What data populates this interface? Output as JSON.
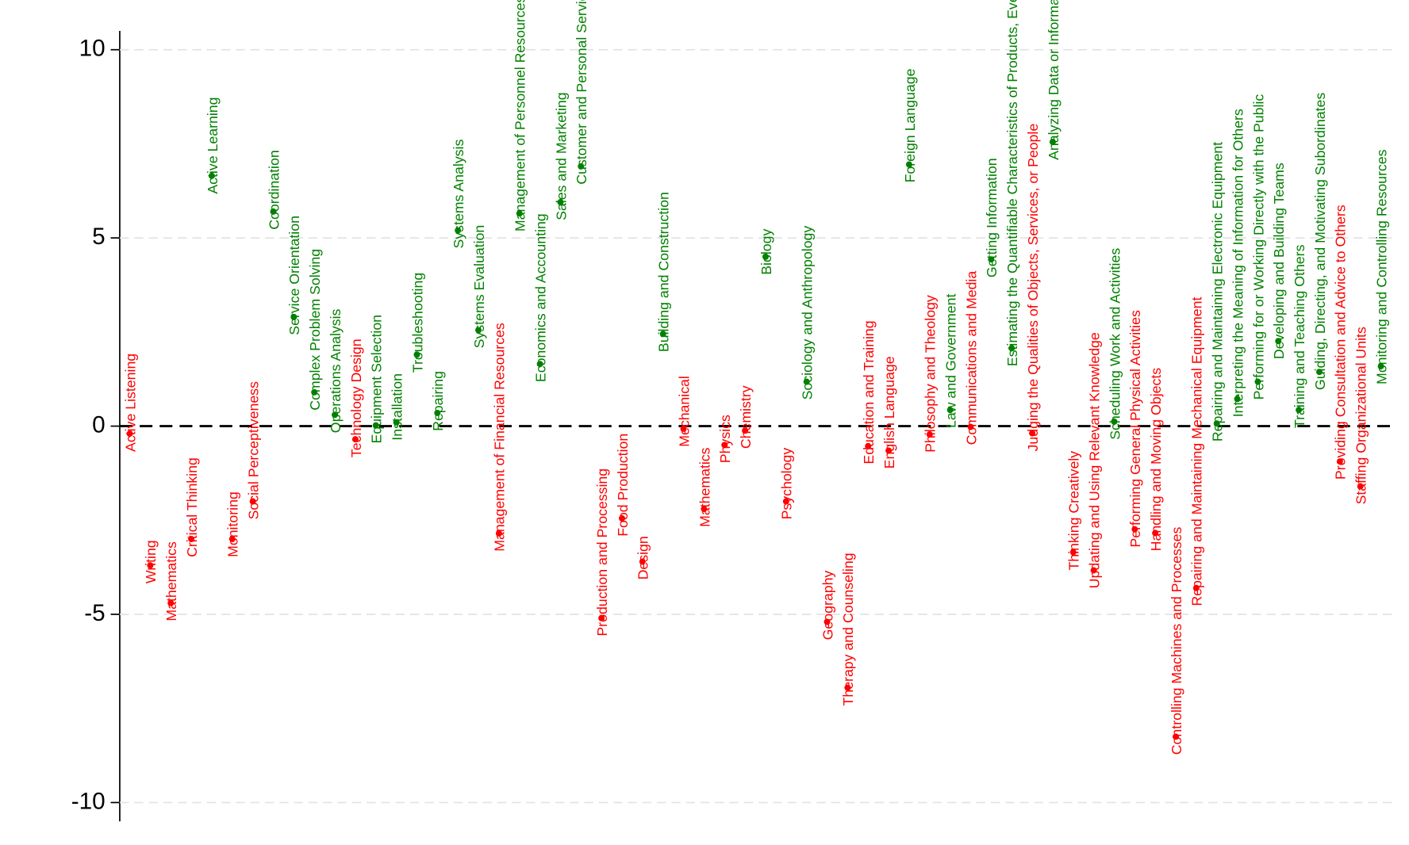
{
  "chart_data": {
    "type": "scatter",
    "categories": [
      "Active Listening",
      "Writing",
      "Mathematics",
      "Critical Thinking",
      "Active Learning",
      "Monitoring",
      "Social Perceptiveness",
      "Coordination",
      "Service Orientation",
      "Complex Problem Solving",
      "Operations Analysis",
      "Technology Design",
      "Equipment Selection",
      "Installation",
      "Troubleshooting",
      "Repairing",
      "Systems Analysis",
      "Systems Evaluation",
      "Management of Financial Resources",
      "Management of Personnel Resources",
      "Economics and Accounting",
      "Sales and Marketing",
      "Customer and Personal Service",
      "Production and Processing",
      "Food Production",
      "Design",
      "Building and Construction",
      "Mechanical",
      "Mathematics",
      "Physics",
      "Chemistry",
      "Biology",
      "Psychology",
      "Sociology and Anthropology",
      "Geography",
      "Therapy and Counseling",
      "Education and Training",
      "English Language",
      "Foreign Language",
      "Philosophy and Theology",
      "Law and Government",
      "Communications and Media",
      "Getting Information",
      "Estimating the Quantifiable Characteristics of Products, Events, or Information",
      "Judging the Qualities of Objects, Services, or People",
      "Analyzing Data or Information",
      "Thinking Creatively",
      "Updating and Using Relevant Knowledge",
      "Scheduling Work and Activities",
      "Performing General Physical Activities",
      "Handling and Moving Objects",
      "Controlling Machines and Processes",
      "Repairing and Maintaining Mechanical Equipment",
      "Repairing and Maintaining Electronic Equipment",
      "Interpreting the Meaning of Information for Others",
      "Performing for or Working Directly with the Public",
      "Developing and Building Teams",
      "Training and Teaching Others",
      "Guiding, Directing, and Motivating Subordinates",
      "Providing Consultation and Advice to Others",
      "Staffing Organizational Units",
      "Monitoring and Controlling Resources"
    ],
    "values": [
      -0.2,
      -3.7,
      -4.7,
      -3.0,
      6.65,
      -3.0,
      -2.0,
      5.7,
      2.9,
      0.9,
      0.3,
      -0.35,
      0.02,
      0.1,
      1.9,
      0.35,
      5.2,
      2.55,
      -2.85,
      5.65,
      1.65,
      5.95,
      6.9,
      -5.1,
      -2.45,
      -3.6,
      2.45,
      -0.07,
      -2.2,
      -0.5,
      -0.12,
      4.5,
      -2.0,
      1.18,
      -5.2,
      -6.95,
      -0.53,
      -0.65,
      6.95,
      -0.22,
      0.43,
      -0.02,
      4.43,
      2.07,
      -0.19,
      7.55,
      -3.35,
      -3.83,
      0.12,
      -2.74,
      -2.84,
      -8.25,
      -4.3,
      0.07,
      0.72,
      1.18,
      2.26,
      0.43,
      1.44,
      -0.94,
      -1.6,
      1.59
    ],
    "color_positive": "#008000",
    "color_negative": "#ff0000",
    "ylim": [
      -10.5,
      10.5
    ],
    "yticks": [
      -10,
      -5,
      0,
      5,
      10
    ],
    "grid": true,
    "zero_line": true
  }
}
